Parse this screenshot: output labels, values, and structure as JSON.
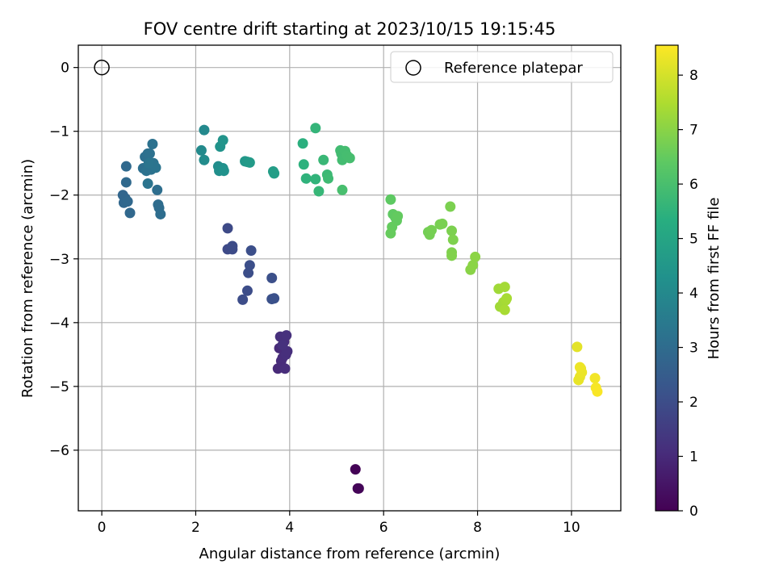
{
  "chart_data": {
    "type": "scatter",
    "title": "FOV centre drift starting at 2023/10/15 19:15:45",
    "xlabel": "Angular distance from reference (arcmin)",
    "ylabel": "Rotation from reference (arcmin)",
    "xlim": [
      -0.5,
      11.05
    ],
    "ylim": [
      -6.95,
      0.35
    ],
    "xticks": [
      0,
      2,
      4,
      6,
      8,
      10
    ],
    "yticks": [
      0,
      -1,
      -2,
      -3,
      -4,
      -5,
      -6
    ],
    "xtick_labels": [
      "0",
      "2",
      "4",
      "6",
      "8",
      "10"
    ],
    "ytick_labels": [
      "0",
      "−1",
      "−2",
      "−3",
      "−4",
      "−5",
      "−6"
    ],
    "grid": true,
    "legend": {
      "placement": "top-right",
      "label": "Reference platepar"
    },
    "reference_point": {
      "x": 0,
      "y": 0
    },
    "colorbar": {
      "label": "Hours from first FF file",
      "range": [
        0,
        8.55
      ],
      "ticks": [
        0,
        1,
        2,
        3,
        4,
        5,
        6,
        7,
        8
      ],
      "tick_labels": [
        "0",
        "1",
        "2",
        "3",
        "4",
        "5",
        "6",
        "7",
        "8"
      ],
      "colormap": "viridis"
    },
    "points": [
      [
        5.4,
        -6.3,
        0.05
      ],
      [
        5.45,
        -6.6,
        0.08
      ],
      [
        5.47,
        -6.6,
        0.1
      ],
      [
        3.75,
        -4.72,
        1.0
      ],
      [
        3.78,
        -4.4,
        1.02
      ],
      [
        3.82,
        -4.6,
        1.04
      ],
      [
        3.85,
        -4.55,
        1.06
      ],
      [
        3.88,
        -4.3,
        1.08
      ],
      [
        3.9,
        -4.72,
        1.1
      ],
      [
        3.92,
        -4.5,
        1.12
      ],
      [
        3.95,
        -4.45,
        1.14
      ],
      [
        3.8,
        -4.22,
        1.16
      ],
      [
        3.93,
        -4.2,
        1.18
      ],
      [
        3.85,
        -4.35,
        1.2
      ],
      [
        2.68,
        -2.52,
        1.9
      ],
      [
        2.68,
        -2.85,
        1.92
      ],
      [
        2.78,
        -2.85,
        1.94
      ],
      [
        2.78,
        -2.8,
        1.96
      ],
      [
        3.0,
        -3.64,
        1.98
      ],
      [
        3.1,
        -3.5,
        2.0
      ],
      [
        3.12,
        -3.22,
        2.02
      ],
      [
        3.15,
        -3.1,
        2.04
      ],
      [
        3.18,
        -2.87,
        2.06
      ],
      [
        3.62,
        -3.3,
        2.08
      ],
      [
        3.62,
        -3.63,
        2.1
      ],
      [
        3.67,
        -3.62,
        2.12
      ],
      [
        0.45,
        -2.0,
        2.8
      ],
      [
        0.5,
        -2.05,
        2.82
      ],
      [
        0.47,
        -2.12,
        2.84
      ],
      [
        0.55,
        -2.1,
        2.86
      ],
      [
        0.6,
        -2.28,
        2.88
      ],
      [
        0.52,
        -1.8,
        2.9
      ],
      [
        0.52,
        -1.55,
        2.92
      ],
      [
        1.2,
        -2.15,
        3.0
      ],
      [
        1.22,
        -2.2,
        3.02
      ],
      [
        1.25,
        -2.3,
        3.04
      ],
      [
        1.18,
        -1.92,
        3.06
      ],
      [
        0.88,
        -1.58,
        3.1
      ],
      [
        0.92,
        -1.4,
        3.12
      ],
      [
        0.98,
        -1.35,
        3.14
      ],
      [
        1.02,
        -1.35,
        3.16
      ],
      [
        1.08,
        -1.2,
        3.18
      ],
      [
        0.95,
        -1.62,
        3.2
      ],
      [
        1.05,
        -1.6,
        3.22
      ],
      [
        1.1,
        -1.5,
        3.24
      ],
      [
        1.15,
        -1.57,
        3.26
      ],
      [
        0.98,
        -1.82,
        3.28
      ],
      [
        1.0,
        -1.5,
        3.3
      ],
      [
        2.18,
        -0.98,
        4.0
      ],
      [
        2.12,
        -1.3,
        4.05
      ],
      [
        2.18,
        -1.45,
        4.1
      ],
      [
        2.48,
        -1.55,
        4.15
      ],
      [
        2.5,
        -1.62,
        4.2
      ],
      [
        2.58,
        -1.58,
        4.25
      ],
      [
        2.6,
        -1.62,
        4.3
      ],
      [
        2.52,
        -1.24,
        4.35
      ],
      [
        2.58,
        -1.14,
        4.4
      ],
      [
        3.05,
        -1.47,
        4.5
      ],
      [
        3.1,
        -1.48,
        4.55
      ],
      [
        3.15,
        -1.49,
        4.6
      ],
      [
        3.65,
        -1.63,
        4.7
      ],
      [
        3.67,
        -1.66,
        4.75
      ],
      [
        4.28,
        -1.19,
        5.4
      ],
      [
        4.3,
        -1.52,
        5.45
      ],
      [
        4.35,
        -1.74,
        5.5
      ],
      [
        4.55,
        -1.75,
        5.55
      ],
      [
        4.55,
        -0.95,
        5.6
      ],
      [
        4.62,
        -1.94,
        5.65
      ],
      [
        4.72,
        -1.45,
        5.7
      ],
      [
        4.8,
        -1.68,
        5.75
      ],
      [
        4.82,
        -1.74,
        5.8
      ],
      [
        5.08,
        -1.3,
        5.85
      ],
      [
        5.1,
        -1.35,
        5.87
      ],
      [
        5.12,
        -1.45,
        5.89
      ],
      [
        5.18,
        -1.31,
        5.91
      ],
      [
        5.22,
        -1.38,
        5.93
      ],
      [
        5.28,
        -1.42,
        5.95
      ],
      [
        5.12,
        -1.92,
        5.97
      ],
      [
        6.15,
        -2.07,
        6.4
      ],
      [
        6.2,
        -2.3,
        6.42
      ],
      [
        6.25,
        -2.35,
        6.44
      ],
      [
        6.28,
        -2.4,
        6.46
      ],
      [
        6.3,
        -2.33,
        6.48
      ],
      [
        6.18,
        -2.5,
        6.5
      ],
      [
        6.15,
        -2.6,
        6.52
      ],
      [
        6.95,
        -2.58,
        6.7
      ],
      [
        6.98,
        -2.62,
        6.72
      ],
      [
        7.02,
        -2.55,
        6.74
      ],
      [
        7.2,
        -2.46,
        6.76
      ],
      [
        7.25,
        -2.45,
        6.78
      ],
      [
        7.42,
        -2.18,
        6.8
      ],
      [
        7.45,
        -2.56,
        6.82
      ],
      [
        7.48,
        -2.7,
        6.84
      ],
      [
        7.45,
        -2.9,
        6.86
      ],
      [
        7.45,
        -2.95,
        6.88
      ],
      [
        7.85,
        -3.17,
        7.0
      ],
      [
        7.9,
        -3.1,
        7.02
      ],
      [
        7.95,
        -2.97,
        7.04
      ],
      [
        8.45,
        -3.47,
        7.3
      ],
      [
        8.48,
        -3.75,
        7.32
      ],
      [
        8.55,
        -3.68,
        7.34
      ],
      [
        8.58,
        -3.44,
        7.36
      ],
      [
        8.6,
        -3.65,
        7.38
      ],
      [
        8.62,
        -3.62,
        7.4
      ],
      [
        8.58,
        -3.8,
        7.42
      ],
      [
        10.12,
        -4.38,
        8.2
      ],
      [
        10.15,
        -4.9,
        8.25
      ],
      [
        10.18,
        -4.85,
        8.27
      ],
      [
        10.2,
        -4.72,
        8.29
      ],
      [
        10.22,
        -4.78,
        8.31
      ],
      [
        10.18,
        -4.7,
        8.33
      ],
      [
        10.5,
        -4.87,
        8.4
      ],
      [
        10.52,
        -5.02,
        8.45
      ],
      [
        10.55,
        -5.08,
        8.5
      ]
    ]
  }
}
